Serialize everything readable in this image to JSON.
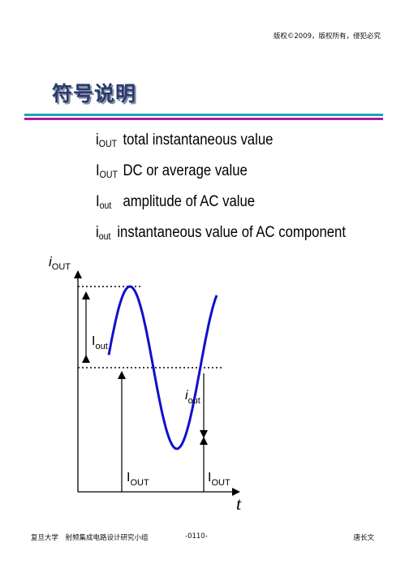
{
  "header": {
    "copyright": "版权©2009，版权所有，侵犯必究",
    "title": "符号说明"
  },
  "definitions": [
    {
      "sym_main": "i",
      "sym_sub": "OUT",
      "text": "total instantaneous value"
    },
    {
      "sym_main": "I",
      "sym_sub": "OUT",
      "text": "DC or average value"
    },
    {
      "sym_main": "I",
      "sym_sub": "out",
      "text": "amplitude of AC value"
    },
    {
      "sym_main": "i",
      "sym_sub": "out",
      "text": "instantaneous value of AC component"
    }
  ],
  "diagram": {
    "y_axis_label_main": "i",
    "y_axis_label_sub": "OUT",
    "x_axis_label": "t",
    "amp_label_main": "I",
    "amp_label_sub": "out",
    "ac_label_main": "i",
    "ac_label_sub": "out",
    "dc_label1_main": "I",
    "dc_label1_sub": "OUT",
    "dc_label2_main": "I",
    "dc_label2_sub": "OUT",
    "curve_color": "#1010cc"
  },
  "footer": {
    "left": "复旦大学　射频集成电路设计研究小组",
    "center": "-0110-",
    "right": "唐长文"
  }
}
